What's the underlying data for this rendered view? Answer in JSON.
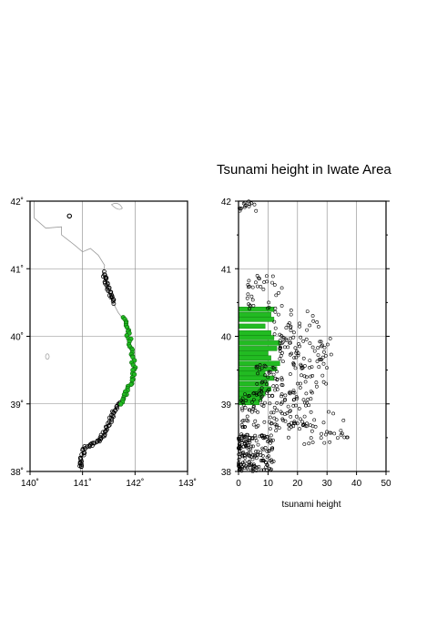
{
  "title": "Tsunami height in Iwate Area",
  "colors": {
    "frame": "#000000",
    "grid": "#888888",
    "coast": "#9a9a9a",
    "highlight": "#22bb22",
    "point": "#000000"
  },
  "chart_data": [
    {
      "type": "scatter",
      "name": "map",
      "title": "",
      "xlabel": "",
      "ylabel": "",
      "xlim": [
        140,
        143
      ],
      "ylim": [
        38,
        42
      ],
      "x_ticks": [
        140,
        141,
        142,
        143
      ],
      "y_ticks": [
        38,
        39,
        40,
        41,
        42
      ],
      "x_tick_labels": [
        "140˚",
        "141˚",
        "142˚",
        "143˚"
      ],
      "y_tick_labels": [
        "38˚",
        "39˚",
        "40˚",
        "41˚",
        "42˚"
      ],
      "grid": true,
      "coastline": [
        [
          140.08,
          42.0
        ],
        [
          140.08,
          41.75
        ],
        [
          140.3,
          41.6
        ],
        [
          140.6,
          41.62
        ],
        [
          140.6,
          41.5
        ],
        [
          140.85,
          41.35
        ],
        [
          141.0,
          41.25
        ],
        [
          141.15,
          41.3
        ],
        [
          141.3,
          41.2
        ],
        [
          141.42,
          41.05
        ],
        [
          141.4,
          40.95
        ],
        [
          141.45,
          40.8
        ],
        [
          141.5,
          40.65
        ],
        [
          141.58,
          40.5
        ],
        [
          141.68,
          40.35
        ],
        [
          141.78,
          40.25
        ],
        [
          141.84,
          40.1
        ],
        [
          141.88,
          39.95
        ],
        [
          141.92,
          39.8
        ],
        [
          141.95,
          39.65
        ],
        [
          141.98,
          39.55
        ],
        [
          141.95,
          39.4
        ],
        [
          141.88,
          39.25
        ],
        [
          141.8,
          39.1
        ],
        [
          141.7,
          39.0
        ],
        [
          141.62,
          38.92
        ],
        [
          141.55,
          38.8
        ],
        [
          141.45,
          38.6
        ],
        [
          141.3,
          38.45
        ],
        [
          141.05,
          38.35
        ],
        [
          140.98,
          38.2
        ],
        [
          140.96,
          38.0
        ]
      ],
      "highlighted_coast": [
        [
          141.8,
          40.28
        ],
        [
          141.85,
          40.1
        ],
        [
          141.89,
          39.95
        ],
        [
          141.93,
          39.8
        ],
        [
          141.96,
          39.65
        ],
        [
          141.99,
          39.55
        ],
        [
          141.96,
          39.4
        ],
        [
          141.89,
          39.25
        ],
        [
          141.8,
          39.1
        ],
        [
          141.72,
          39.0
        ]
      ],
      "point_coast_segments": [
        [
          [
            141.4,
            40.95
          ],
          [
            141.45,
            40.8
          ],
          [
            141.52,
            40.62
          ],
          [
            141.6,
            40.5
          ]
        ],
        [
          [
            141.72,
            39.0
          ],
          [
            141.62,
            38.92
          ],
          [
            141.55,
            38.8
          ],
          [
            141.45,
            38.6
          ],
          [
            141.3,
            38.45
          ],
          [
            141.05,
            38.35
          ],
          [
            140.98,
            38.2
          ],
          [
            140.96,
            38.05
          ]
        ]
      ],
      "isolated_point": [
        140.75,
        41.78
      ]
    },
    {
      "type": "bar",
      "name": "tsunami-profile",
      "title": "",
      "xlabel": "tsunami height",
      "ylabel": "",
      "xlim": [
        0,
        50
      ],
      "ylim": [
        38,
        42
      ],
      "x_ticks": [
        0,
        10,
        20,
        30,
        40,
        50
      ],
      "y_ticks": [
        38,
        39,
        40,
        41,
        42
      ],
      "grid": true,
      "orientation": "horizontal",
      "bars": [
        {
          "lat": 40.4,
          "height": 12
        },
        {
          "lat": 40.32,
          "height": 11
        },
        {
          "lat": 40.25,
          "height": 12
        },
        {
          "lat": 40.15,
          "height": 9
        },
        {
          "lat": 40.05,
          "height": 11
        },
        {
          "lat": 39.98,
          "height": 12
        },
        {
          "lat": 39.9,
          "height": 14
        },
        {
          "lat": 39.82,
          "height": 13
        },
        {
          "lat": 39.75,
          "height": 10
        },
        {
          "lat": 39.68,
          "height": 11
        },
        {
          "lat": 39.6,
          "height": 14
        },
        {
          "lat": 39.52,
          "height": 13
        },
        {
          "lat": 39.45,
          "height": 9
        },
        {
          "lat": 39.38,
          "height": 12
        },
        {
          "lat": 39.3,
          "height": 10
        },
        {
          "lat": 39.22,
          "height": 11
        },
        {
          "lat": 39.15,
          "height": 9
        },
        {
          "lat": 39.08,
          "height": 8
        },
        {
          "lat": 39.02,
          "height": 7
        }
      ],
      "scatter_clusters": [
        {
          "lat_range": [
            41.85,
            42.0
          ],
          "height_range": [
            0,
            6
          ],
          "count": 15
        },
        {
          "lat_range": [
            40.4,
            40.9
          ],
          "height_range": [
            3,
            15
          ],
          "count": 35
        },
        {
          "lat_range": [
            40.0,
            40.4
          ],
          "height_range": [
            12,
            28
          ],
          "count": 25
        },
        {
          "lat_range": [
            39.6,
            40.0
          ],
          "height_range": [
            14,
            32
          ],
          "count": 60
        },
        {
          "lat_range": [
            39.0,
            39.6
          ],
          "height_range": [
            6,
            30
          ],
          "count": 90
        },
        {
          "lat_range": [
            38.65,
            39.2
          ],
          "height_range": [
            1,
            26
          ],
          "count": 90
        },
        {
          "lat_range": [
            38.4,
            38.9
          ],
          "height_range": [
            10,
            38
          ],
          "count": 45
        },
        {
          "lat_range": [
            38.0,
            38.55
          ],
          "height_range": [
            0,
            12
          ],
          "count": 180
        },
        {
          "lat_range": [
            38.4,
            38.6
          ],
          "height_range": [
            28,
            40
          ],
          "count": 8
        }
      ]
    }
  ]
}
